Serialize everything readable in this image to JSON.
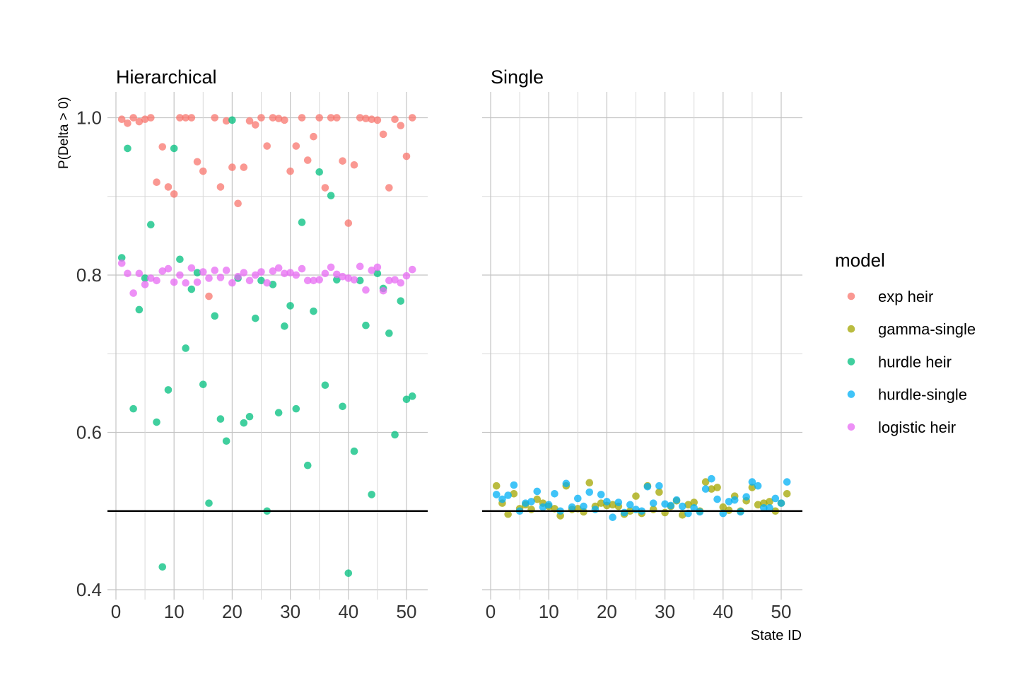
{
  "chart_data": {
    "type": "scatter",
    "ylabel": "P(Delta > 0)",
    "xlabel": "State ID",
    "xlim": [
      0,
      53
    ],
    "ylim": [
      0.395,
      1.025
    ],
    "x_ticks": [
      0,
      10,
      20,
      30,
      40,
      50
    ],
    "y_ticks": [
      0.4,
      0.6,
      0.8,
      1.0
    ],
    "y_tick_labels": [
      "0.4",
      "0.6",
      "0.8",
      "1.0"
    ],
    "reference_line": 0.5,
    "grid": true,
    "legend": {
      "title": "model",
      "position": "right",
      "entries": [
        {
          "name": "exp heir",
          "color": "#F8766D"
        },
        {
          "name": "gamma-single",
          "color": "#A3A500"
        },
        {
          "name": "hurdle heir",
          "color": "#00BF7D"
        },
        {
          "name": "hurdle-single",
          "color": "#00B0F6"
        },
        {
          "name": "logistic heir",
          "color": "#E76BF3"
        }
      ]
    },
    "panels": [
      {
        "title": "Hierarchical",
        "series": [
          {
            "name": "exp heir",
            "color": "#F8766D",
            "x": [
              1,
              2,
              3,
              4,
              5,
              6,
              7,
              8,
              9,
              10,
              11,
              12,
              13,
              14,
              15,
              16,
              17,
              18,
              19,
              20,
              21,
              22,
              23,
              24,
              25,
              26,
              27,
              28,
              29,
              30,
              31,
              32,
              33,
              34,
              35,
              36,
              37,
              38,
              39,
              40,
              41,
              42,
              43,
              44,
              45,
              46,
              47,
              48,
              49,
              50,
              51
            ],
            "y": [
              0.998,
              0.993,
              1.0,
              0.995,
              0.998,
              1.0,
              0.918,
              0.963,
              0.912,
              0.903,
              1.0,
              1.0,
              1.0,
              0.944,
              0.932,
              0.773,
              1.0,
              0.912,
              0.996,
              0.937,
              0.891,
              0.937,
              0.996,
              0.991,
              1.0,
              0.964,
              1.0,
              0.999,
              0.997,
              0.932,
              0.964,
              1.0,
              0.946,
              0.976,
              1.0,
              0.911,
              1.0,
              1.0,
              0.945,
              0.866,
              0.94,
              1.0,
              0.999,
              0.998,
              0.997,
              0.979,
              0.911,
              0.998,
              0.99,
              0.951,
              1.0
            ]
          },
          {
            "name": "hurdle heir",
            "color": "#00BF7D",
            "x": [
              1,
              2,
              3,
              4,
              5,
              6,
              7,
              8,
              9,
              10,
              11,
              12,
              13,
              14,
              15,
              16,
              17,
              18,
              19,
              20,
              21,
              22,
              23,
              24,
              25,
              26,
              27,
              28,
              29,
              30,
              31,
              32,
              33,
              34,
              35,
              36,
              37,
              38,
              39,
              40,
              41,
              42,
              43,
              44,
              45,
              46,
              47,
              48,
              49,
              50,
              51
            ],
            "y": [
              0.822,
              0.961,
              0.63,
              0.756,
              0.796,
              0.864,
              0.613,
              0.429,
              0.654,
              0.961,
              0.82,
              0.707,
              0.782,
              0.803,
              0.661,
              0.51,
              0.748,
              0.617,
              0.589,
              0.997,
              0.796,
              0.612,
              0.62,
              0.745,
              0.793,
              0.5,
              0.788,
              0.625,
              0.735,
              0.761,
              0.63,
              0.867,
              0.558,
              0.754,
              0.931,
              0.66,
              0.901,
              0.794,
              0.633,
              0.421,
              0.576,
              0.793,
              0.736,
              0.521,
              0.802,
              0.783,
              0.726,
              0.597,
              0.767,
              0.642,
              0.646
            ]
          },
          {
            "name": "logistic heir",
            "color": "#E76BF3",
            "x": [
              1,
              2,
              3,
              4,
              5,
              6,
              7,
              8,
              9,
              10,
              11,
              12,
              13,
              14,
              15,
              16,
              17,
              18,
              19,
              20,
              21,
              22,
              23,
              24,
              25,
              26,
              27,
              28,
              29,
              30,
              31,
              32,
              33,
              34,
              35,
              36,
              37,
              38,
              39,
              40,
              41,
              42,
              43,
              44,
              45,
              46,
              47,
              48,
              49,
              50,
              51
            ],
            "y": [
              0.815,
              0.802,
              0.777,
              0.802,
              0.788,
              0.796,
              0.793,
              0.805,
              0.808,
              0.791,
              0.8,
              0.79,
              0.809,
              0.791,
              0.804,
              0.796,
              0.806,
              0.797,
              0.806,
              0.79,
              0.798,
              0.803,
              0.793,
              0.8,
              0.804,
              0.79,
              0.805,
              0.809,
              0.802,
              0.803,
              0.8,
              0.808,
              0.793,
              0.793,
              0.794,
              0.802,
              0.81,
              0.801,
              0.798,
              0.796,
              0.794,
              0.811,
              0.781,
              0.806,
              0.81,
              0.78,
              0.793,
              0.794,
              0.79,
              0.799,
              0.807
            ]
          }
        ]
      },
      {
        "title": "Single",
        "series": [
          {
            "name": "gamma-single",
            "color": "#A3A500",
            "x": [
              1,
              2,
              3,
              4,
              5,
              6,
              7,
              8,
              9,
              10,
              11,
              12,
              13,
              14,
              15,
              16,
              17,
              18,
              19,
              20,
              21,
              22,
              23,
              24,
              25,
              26,
              27,
              28,
              29,
              30,
              31,
              32,
              33,
              34,
              35,
              36,
              37,
              38,
              39,
              40,
              41,
              42,
              43,
              44,
              45,
              46,
              47,
              48,
              49,
              50,
              51
            ],
            "y": [
              0.532,
              0.51,
              0.496,
              0.522,
              0.503,
              0.508,
              0.502,
              0.515,
              0.51,
              0.506,
              0.503,
              0.494,
              0.532,
              0.502,
              0.503,
              0.499,
              0.536,
              0.506,
              0.51,
              0.507,
              0.508,
              0.506,
              0.496,
              0.5,
              0.519,
              0.497,
              0.532,
              0.502,
              0.524,
              0.498,
              0.506,
              0.513,
              0.495,
              0.508,
              0.511,
              0.5,
              0.537,
              0.528,
              0.53,
              0.505,
              0.501,
              0.519,
              0.5,
              0.513,
              0.53,
              0.508,
              0.51,
              0.512,
              0.5,
              0.51,
              0.522
            ]
          },
          {
            "name": "hurdle-single",
            "color": "#00B0F6",
            "x": [
              1,
              2,
              3,
              4,
              5,
              6,
              7,
              8,
              9,
              10,
              11,
              12,
              13,
              14,
              15,
              16,
              17,
              18,
              19,
              20,
              21,
              22,
              23,
              24,
              25,
              26,
              27,
              28,
              29,
              30,
              31,
              32,
              33,
              34,
              35,
              36,
              37,
              38,
              39,
              40,
              41,
              42,
              43,
              44,
              45,
              46,
              47,
              48,
              49,
              50,
              51
            ],
            "y": [
              0.521,
              0.515,
              0.52,
              0.533,
              0.5,
              0.51,
              0.512,
              0.525,
              0.505,
              0.508,
              0.522,
              0.5,
              0.535,
              0.505,
              0.516,
              0.506,
              0.524,
              0.502,
              0.521,
              0.512,
              0.492,
              0.511,
              0.498,
              0.508,
              0.502,
              0.5,
              0.531,
              0.51,
              0.532,
              0.509,
              0.507,
              0.514,
              0.506,
              0.497,
              0.504,
              0.499,
              0.528,
              0.541,
              0.515,
              0.497,
              0.512,
              0.514,
              0.499,
              0.518,
              0.537,
              0.532,
              0.504,
              0.504,
              0.516,
              0.51,
              0.537
            ]
          }
        ]
      }
    ]
  }
}
